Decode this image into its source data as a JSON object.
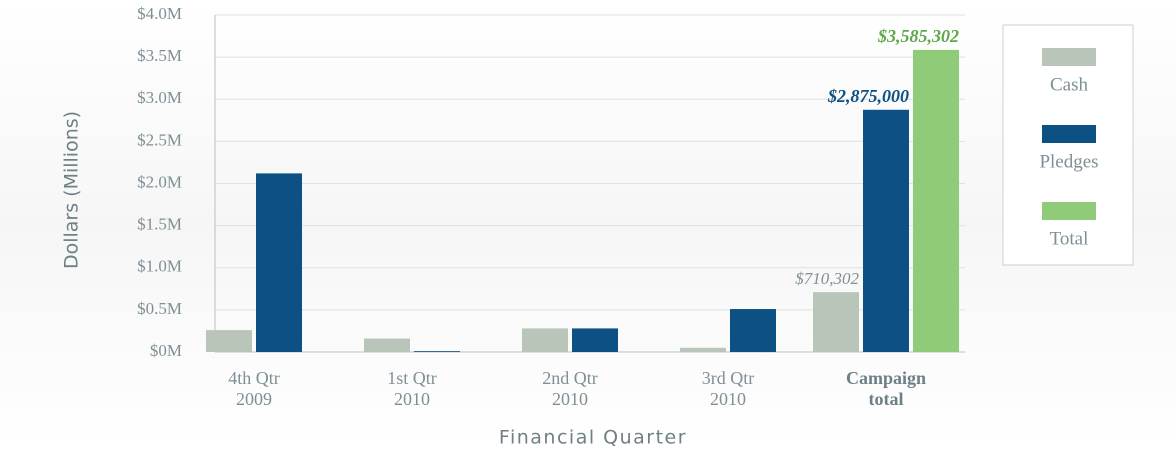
{
  "chart_data": {
    "type": "bar",
    "y_label": "Dollars (Millions)",
    "x_label": "Financial Quarter",
    "categories": [
      "4th Qtr\n2009",
      "1st Qtr\n2010",
      "2nd Qtr\n2010",
      "3rd Qtr\n2010",
      "Campaign\ntotal"
    ],
    "series": [
      {
        "name": "Cash",
        "color": "#bac5b9",
        "values": [
          260000,
          160000,
          280000,
          50000,
          710302
        ],
        "value_labels": [
          null,
          null,
          null,
          null,
          "$710,302"
        ]
      },
      {
        "name": "Pledges",
        "color": "#0d5083",
        "values": [
          2120000,
          10000,
          280000,
          510000,
          2875000
        ],
        "value_labels": [
          null,
          null,
          null,
          null,
          "$2,875,000"
        ]
      },
      {
        "name": "Total",
        "color": "#8fcb78",
        "values": [
          null,
          null,
          null,
          null,
          3585302
        ],
        "value_labels": [
          null,
          null,
          null,
          null,
          "$3,585,302"
        ]
      }
    ],
    "ylim": [
      0,
      4000000
    ],
    "yticks": [
      {
        "value": 0,
        "label": "$0M"
      },
      {
        "value": 500000,
        "label": "$0.5M"
      },
      {
        "value": 1000000,
        "label": "$1.0M"
      },
      {
        "value": 1500000,
        "label": "$1.5M"
      },
      {
        "value": 2000000,
        "label": "$2.0M"
      },
      {
        "value": 2500000,
        "label": "$2.5M"
      },
      {
        "value": 3000000,
        "label": "$3.0M"
      },
      {
        "value": 3500000,
        "label": "$3.5M"
      },
      {
        "value": 4000000,
        "label": "$4.0M"
      }
    ],
    "grid": true,
    "legend": "right"
  }
}
